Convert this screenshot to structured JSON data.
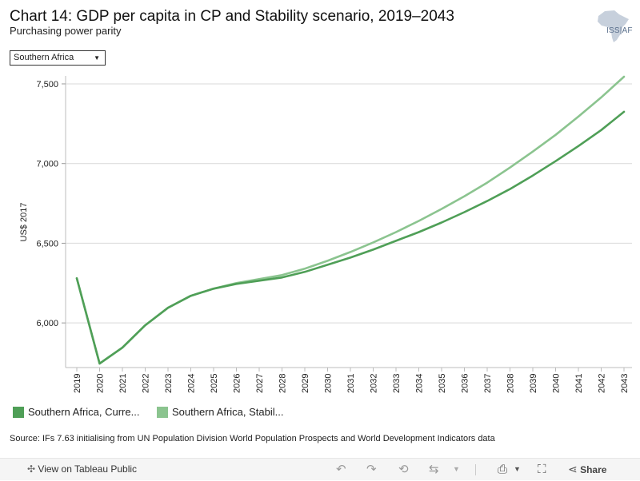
{
  "header": {
    "title": "Chart 14: GDP per capita in CP and Stability scenario, 2019–2043",
    "subtitle": "Purchasing power parity",
    "logo_text": "ISS|AF"
  },
  "filter": {
    "selected": "Southern Africa"
  },
  "legend": {
    "items": [
      {
        "label": "Southern Africa, Curre...",
        "color": "#4f9f57"
      },
      {
        "label": "Southern Africa, Stabil...",
        "color": "#8bc48f"
      }
    ]
  },
  "source": "Source: IFs 7.63 initialising from UN Population Division World Population Prospects and World Development Indicators data",
  "toolbar": {
    "view_label": "View on Tableau Public",
    "share_label": "Share",
    "undo_icon": "undo-icon",
    "redo_icon": "redo-icon",
    "revert_icon": "revert-icon",
    "refresh_icon": "refresh-icon",
    "download_icon": "download-icon",
    "fullscreen_icon": "fullscreen-icon",
    "share_icon": "share-icon"
  },
  "chart_data": {
    "type": "line",
    "title": "Chart 14: GDP per capita in CP and Stability scenario, 2019–2043",
    "xlabel": "",
    "ylabel": "US$ 2017",
    "ylim": [
      5720,
      7550
    ],
    "yticks": [
      6000,
      6500,
      7000,
      7500
    ],
    "ytick_labels": [
      "6,000",
      "6,500",
      "7,000",
      "7,500"
    ],
    "grid": true,
    "x": [
      "2019",
      "2020",
      "2021",
      "2022",
      "2023",
      "2024",
      "2025",
      "2026",
      "2027",
      "2028",
      "2029",
      "2030",
      "2031",
      "2032",
      "2033",
      "2034",
      "2035",
      "2036",
      "2037",
      "2038",
      "2039",
      "2040",
      "2041",
      "2042",
      "2043"
    ],
    "series": [
      {
        "name": "Southern Africa, Current Path",
        "color": "#4f9f57",
        "values": [
          6280,
          5745,
          5845,
          5985,
          6095,
          6170,
          6215,
          6245,
          6265,
          6285,
          6320,
          6365,
          6410,
          6460,
          6515,
          6570,
          6630,
          6695,
          6765,
          6840,
          6925,
          7015,
          7110,
          7210,
          7325
        ]
      },
      {
        "name": "Southern Africa, Stability",
        "color": "#8bc48f",
        "values": [
          6280,
          5745,
          5845,
          5985,
          6095,
          6170,
          6215,
          6250,
          6275,
          6300,
          6340,
          6390,
          6445,
          6505,
          6570,
          6640,
          6715,
          6795,
          6880,
          6975,
          7075,
          7180,
          7295,
          7415,
          7545
        ]
      }
    ]
  }
}
